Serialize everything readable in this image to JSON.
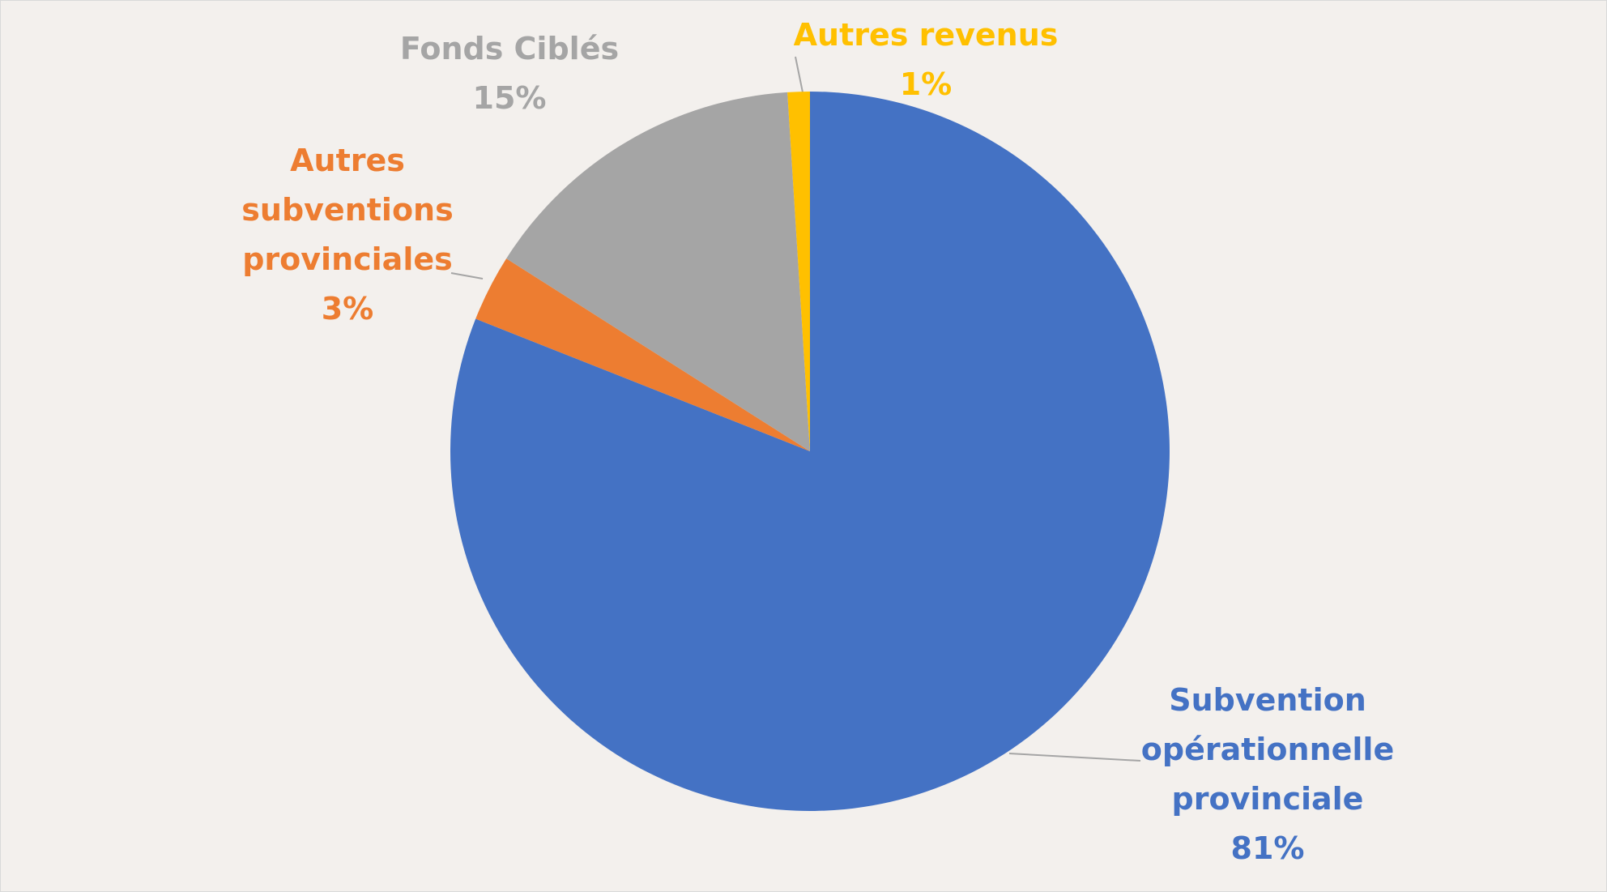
{
  "chart_data": {
    "type": "pie",
    "categories": [
      "Subvention opérationnelle provinciale",
      "Autres subventions provinciales",
      "Fonds Ciblés",
      "Autres revenus"
    ],
    "values": [
      81,
      3,
      15,
      1
    ],
    "value_labels": [
      "81%",
      "3%",
      "15%",
      "1%"
    ],
    "colors": [
      "#4472c4",
      "#ed7d31",
      "#a5a5a5",
      "#ffc000"
    ]
  }
}
